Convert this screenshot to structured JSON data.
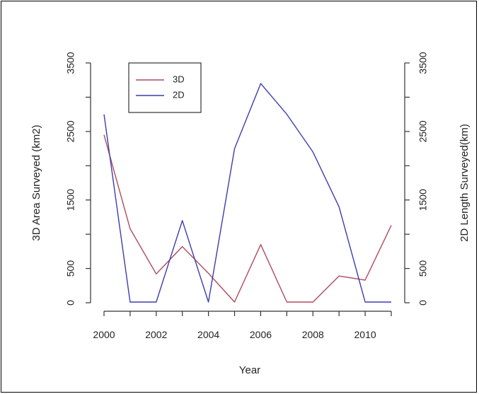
{
  "chart_data": {
    "type": "line",
    "x": [
      2000,
      2001,
      2002,
      2003,
      2004,
      2005,
      2006,
      2007,
      2008,
      2009,
      2010,
      2011
    ],
    "x_ticks": [
      "2000",
      "2002",
      "2004",
      "2006",
      "2008",
      "2010"
    ],
    "xlabel": "Year",
    "ylabel_left": "3D Area Surveyed (km2)",
    "ylabel_right": "2D Length Surveyed(km)",
    "y_ticks": [
      "0",
      "500",
      "1500",
      "2500",
      "3500"
    ],
    "ylim": [
      0,
      3500
    ],
    "grid": false,
    "legend_position": "top-left",
    "series": [
      {
        "name": "3D",
        "axis": "left",
        "color": "#b04a5e",
        "values": [
          2450,
          1080,
          420,
          820,
          430,
          10,
          850,
          10,
          10,
          390,
          330,
          1130
        ]
      },
      {
        "name": "2D",
        "axis": "right",
        "color": "#3c3cb0",
        "values": [
          2750,
          10,
          10,
          1200,
          10,
          2250,
          3200,
          2750,
          2200,
          1400,
          10,
          10
        ]
      }
    ]
  }
}
